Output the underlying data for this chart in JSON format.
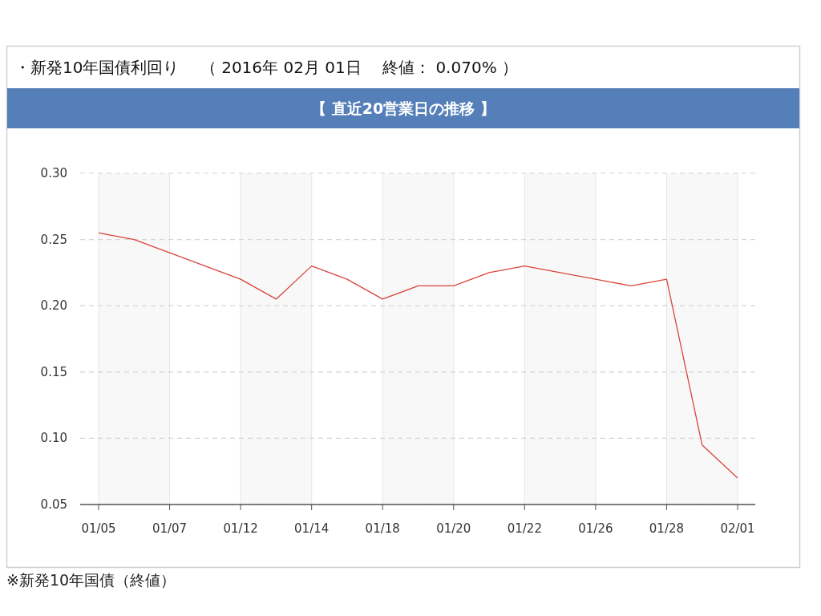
{
  "chart_data": {
    "type": "line",
    "title": "・新発10年国債利回り　 （ 2016年 02月 01日　 終値： 0.070% ）",
    "subtitle": "【 直近20営業日の推移 】",
    "annotations": [
      "※新発10年国債（終値）"
    ],
    "categories": [
      "01/05",
      null,
      "01/07",
      null,
      "01/12",
      null,
      "01/14",
      null,
      "01/18",
      null,
      "01/20",
      null,
      "01/22",
      null,
      "01/26",
      null,
      "01/28",
      null,
      "02/01"
    ],
    "values": [
      0.255,
      0.25,
      0.24,
      0.23,
      0.22,
      0.205,
      0.23,
      0.22,
      0.205,
      0.215,
      0.215,
      0.225,
      0.23,
      0.225,
      0.22,
      0.215,
      0.22,
      0.095,
      0.07
    ],
    "color": "#d9453b",
    "ylim": [
      0.05,
      0.3
    ],
    "yticks": [
      {
        "value": 0.05,
        "label": "0.05"
      },
      {
        "value": 0.1,
        "label": "0.10"
      },
      {
        "value": 0.15,
        "label": "0.15"
      },
      {
        "value": 0.2,
        "label": "0.20"
      },
      {
        "value": 0.25,
        "label": "0.25"
      },
      {
        "value": 0.3,
        "label": "0.30"
      }
    ],
    "grid": true,
    "bands": [
      {
        "axis": "x",
        "from": "01/05",
        "to": "01/07",
        "color": "#f8f8f8"
      },
      {
        "axis": "x",
        "from": "01/12",
        "to": "01/14",
        "color": "#f8f8f8"
      },
      {
        "axis": "x",
        "from": "01/18",
        "to": "01/20",
        "color": "#f8f8f8"
      },
      {
        "axis": "x",
        "from": "01/22",
        "to": "01/26",
        "color": "#f8f8f8"
      },
      {
        "axis": "x",
        "from": "01/28",
        "to": "02/01",
        "color": "#f8f8f8"
      }
    ]
  }
}
